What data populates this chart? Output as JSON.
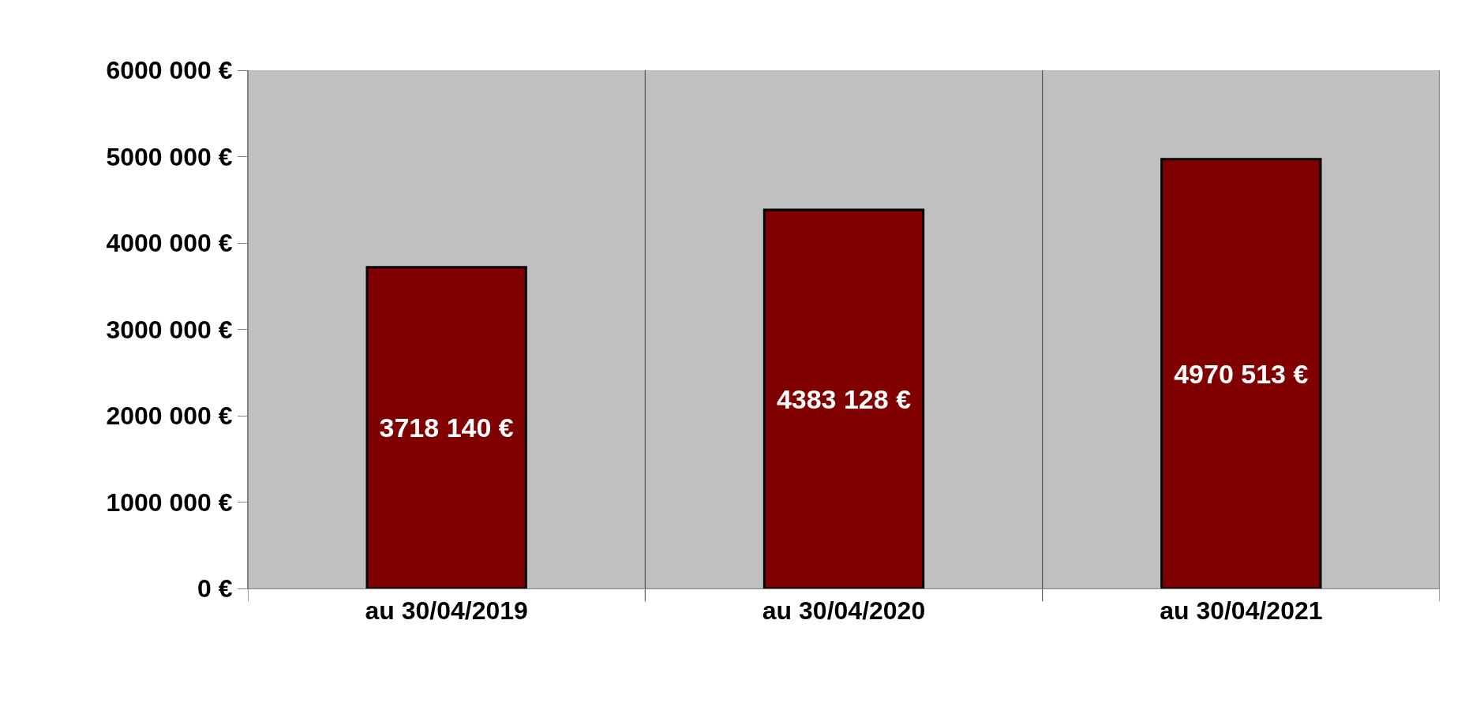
{
  "chart_data": {
    "type": "bar",
    "categories": [
      "au 30/04/2019",
      "au 30/04/2020",
      "au 30/04/2021"
    ],
    "values": [
      3718140,
      4383128,
      4970513
    ],
    "value_labels": [
      "3718 140 €",
      "4383 128 €",
      "4970 513 €"
    ],
    "color": "#800000",
    "ylim": [
      0,
      6000000
    ],
    "yticks": [
      {
        "value": 0,
        "label": "0 €"
      },
      {
        "value": 1000000,
        "label": "1000 000 €"
      },
      {
        "value": 2000000,
        "label": "2000 000 €"
      },
      {
        "value": 3000000,
        "label": "3000 000 €"
      },
      {
        "value": 4000000,
        "label": "4000 000 €"
      },
      {
        "value": 5000000,
        "label": "5000 000 €"
      },
      {
        "value": 6000000,
        "label": "6000 000 €"
      }
    ],
    "grid": "x",
    "legend": false
  }
}
